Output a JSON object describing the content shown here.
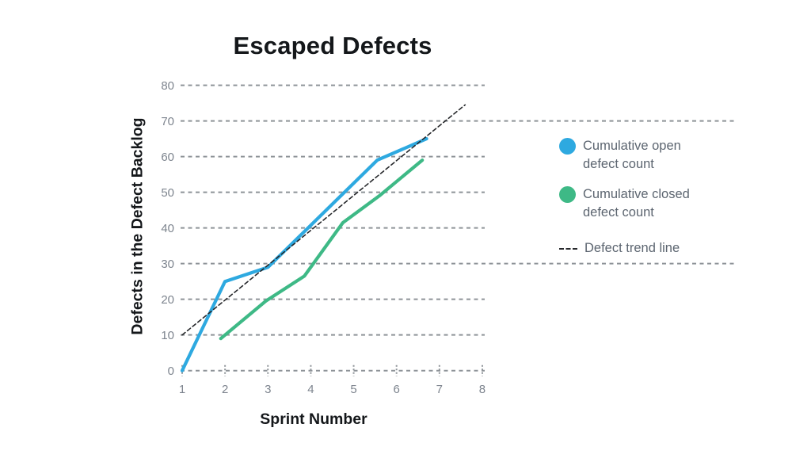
{
  "chart": {
    "title": "Escaped Defects",
    "xlabel": "Sprint Number",
    "ylabel": "Defects in the Defect Backlog"
  },
  "legend": {
    "items": [
      {
        "label": "Cumulative open defect count",
        "swatch": "dot",
        "color": "#2ea9e0"
      },
      {
        "label": "Cumulative closed defect count",
        "swatch": "dot",
        "color": "#3eb986"
      },
      {
        "label": "Defect trend line",
        "swatch": "dashed-line",
        "color": "#26282b"
      }
    ]
  },
  "chart_data": {
    "type": "line",
    "title": "Escaped Defects",
    "xlabel": "Sprint Number",
    "ylabel": "Defects in the Defect Backlog",
    "xlim": [
      1,
      8
    ],
    "ylim": [
      0,
      80
    ],
    "x_ticks": [
      1,
      2,
      3,
      4,
      5,
      6,
      7,
      8
    ],
    "y_ticks": [
      0,
      10,
      20,
      30,
      40,
      50,
      60,
      70,
      80
    ],
    "grid": "horizontal-dashed",
    "grid_color": "#8e9398",
    "extended_gridlines": [
      30,
      70
    ],
    "legend_position": "right",
    "series": [
      {
        "name": "Cumulative open defect count",
        "color": "#2ea9e0",
        "style": "solid",
        "points": [
          [
            1,
            0
          ],
          [
            2,
            25
          ],
          [
            3,
            29
          ],
          [
            5.55,
            59
          ],
          [
            6.7,
            65
          ]
        ]
      },
      {
        "name": "Cumulative closed defect count",
        "color": "#3eb986",
        "style": "solid",
        "points": [
          [
            1.9,
            9
          ],
          [
            2.95,
            19.5
          ],
          [
            3.85,
            26.5
          ],
          [
            4.75,
            41.5
          ],
          [
            5.6,
            49
          ],
          [
            6.6,
            59
          ]
        ]
      },
      {
        "name": "Defect trend line",
        "color": "#26282b",
        "style": "dashed",
        "points": [
          [
            1,
            10
          ],
          [
            7.6,
            74.5
          ]
        ]
      }
    ]
  }
}
